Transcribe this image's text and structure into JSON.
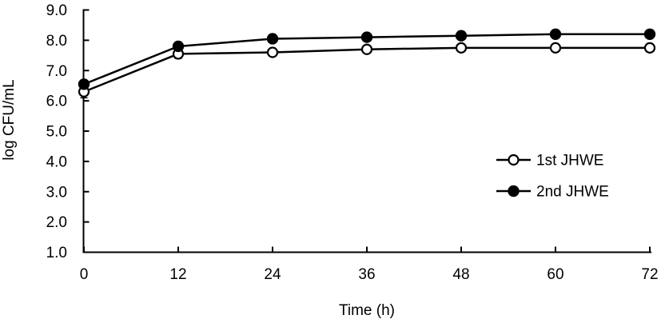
{
  "figure": {
    "background_color": "#ffffff",
    "line_color": "#000000",
    "open_marker_fill": "#ffffff"
  },
  "chart_data": {
    "type": "line",
    "x": [
      0,
      12,
      24,
      36,
      48,
      60,
      72
    ],
    "series": [
      {
        "name": "1st JHWE",
        "marker": "open-circle",
        "color": "#000000",
        "values": [
          6.3,
          7.55,
          7.6,
          7.7,
          7.75,
          7.75,
          7.75
        ]
      },
      {
        "name": "2nd JHWE",
        "marker": "filled-circle",
        "color": "#000000",
        "values": [
          6.55,
          7.8,
          8.05,
          8.1,
          8.15,
          8.2,
          8.2
        ]
      }
    ],
    "error_caps": [
      {
        "series": "1st JHWE",
        "x": 0,
        "y_below": 6.1
      },
      {
        "series": "1st JHWE",
        "x": 12,
        "y_below": 7.4
      }
    ],
    "xlabel": "Time (h)",
    "ylabel": "log CFU/mL",
    "xlim": [
      0,
      72
    ],
    "ylim": [
      1.0,
      9.0
    ],
    "xticks": [
      "0",
      "12",
      "24",
      "36",
      "48",
      "60",
      "72"
    ],
    "yticks": [
      "9.0",
      "8.0",
      "7.0",
      "6.0",
      "5.0",
      "4.0",
      "3.0",
      "2.0",
      "1.0"
    ],
    "grid": false,
    "legend_position": "inside-right"
  }
}
